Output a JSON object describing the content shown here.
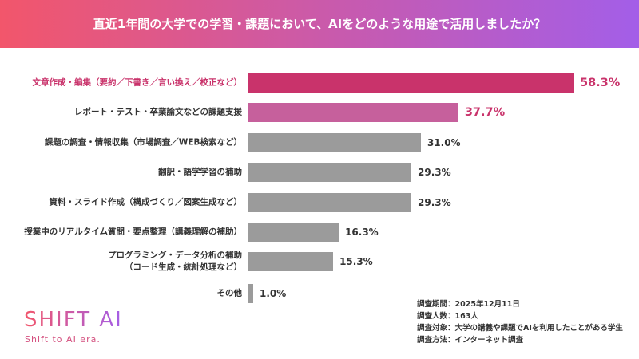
{
  "chart_data": {
    "type": "bar",
    "orientation": "horizontal",
    "title": "直近1年間の大学での学習・課題において、AIをどのような用途で活用しましたか？",
    "categories": [
      "文章作成・編集（要約／下書き／言い換え／校正など）",
      "レポート・テスト・卒業論文などの課題支援",
      "課題の調査・情報収集（市場調査／WEB検索など）",
      "翻訳・語学学習の補助",
      "資料・スライド作成（構成づくり／図案生成など）",
      "授業中のリアルタイム質問・要点整理（講義理解の補助）",
      "プログラミング・データ分析の補助\n（コード生成・統計処理など）",
      "その他"
    ],
    "values": [
      58.3,
      37.7,
      31.0,
      29.3,
      29.3,
      16.3,
      15.3,
      1.0
    ],
    "value_labels": [
      "58.3%",
      "37.7%",
      "31.0%",
      "29.3%",
      "29.3%",
      "16.3%",
      "15.3%",
      "1.0%"
    ],
    "colors": [
      "#c9336b",
      "#c6609c",
      "#9b9b9b",
      "#9b9b9b",
      "#9b9b9b",
      "#9b9b9b",
      "#9b9b9b",
      "#9b9b9b"
    ],
    "label_colors": [
      "#c9336b",
      "#333333",
      "#333333",
      "#333333",
      "#333333",
      "#333333",
      "#333333",
      "#333333"
    ],
    "value_label_colors": [
      "#c9336b",
      "#c9336b",
      "#333333",
      "#333333",
      "#333333",
      "#333333",
      "#333333",
      "#333333"
    ]
  },
  "notes": [
    "調査期間：2025年12月11日",
    "調査人数：163人",
    "調査対象：大学の講義や課題でAIを利用したことがある学生",
    "調査方法：インターネット調査"
  ],
  "logo": {
    "name": "SHIFT AI",
    "tagline": "Shift to AI era."
  }
}
